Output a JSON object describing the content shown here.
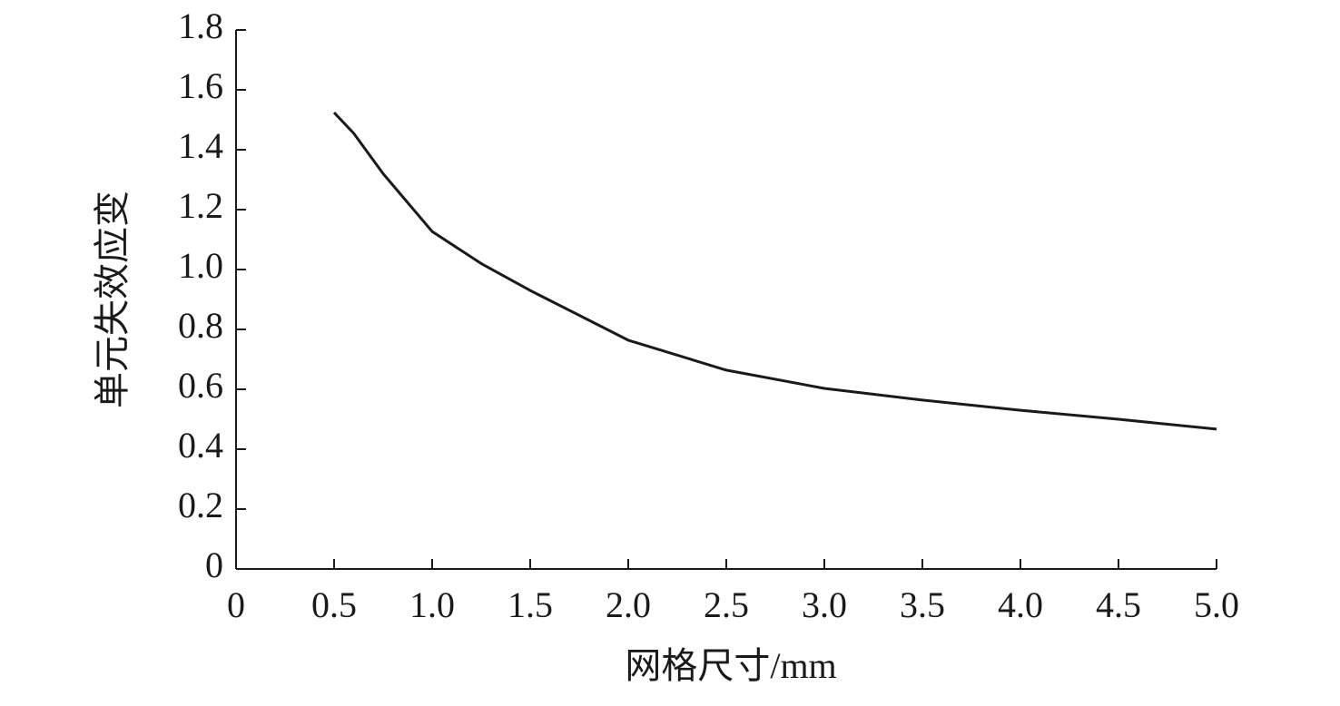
{
  "chart_data": {
    "type": "line",
    "x_label": "网格尺寸/mm",
    "y_label": "单元失效应变",
    "x": [
      0.5,
      0.6,
      0.75,
      1.0,
      1.25,
      1.5,
      2.0,
      2.5,
      3.0,
      3.5,
      4.0,
      4.5,
      5.0
    ],
    "series": [
      {
        "name": "单元失效应变",
        "color": "#1a1a1a",
        "values": [
          1.524,
          1.455,
          1.32,
          1.127,
          1.02,
          0.93,
          0.764,
          0.664,
          0.603,
          0.564,
          0.53,
          0.5,
          0.467
        ]
      }
    ],
    "xlim": [
      0,
      5.0
    ],
    "ylim": [
      0,
      1.8
    ],
    "xticks": [
      0,
      0.5,
      {
        "value": 1,
        "label": "1.0"
      },
      1.5,
      {
        "value": 2,
        "label": "2.0"
      },
      2.5,
      {
        "value": 3,
        "label": "3.0"
      },
      3.5,
      {
        "value": 4,
        "label": "4.0"
      },
      4.5,
      {
        "value": 5,
        "label": "5.0"
      }
    ],
    "yticks": [
      0,
      0.2,
      0.4,
      0.6,
      0.8,
      {
        "value": 1,
        "label": "1.0"
      },
      1.2,
      1.4,
      1.6,
      1.8
    ],
    "grid": false
  }
}
